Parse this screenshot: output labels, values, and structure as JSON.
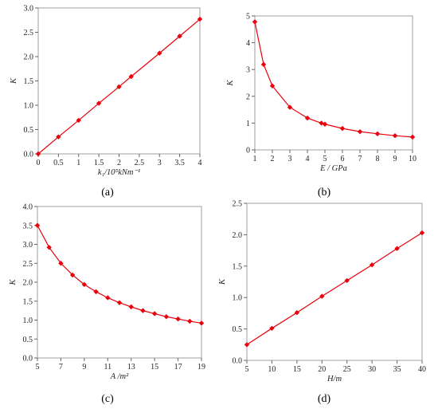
{
  "colors": {
    "series": "#e8000b",
    "axis": "#666666"
  },
  "chart_data": [
    {
      "type": "line",
      "panel_label": "(a)",
      "xlabel": "k₁/10⁵kNm⁻¹",
      "ylabel": "K",
      "xlim": [
        0,
        4
      ],
      "ylim": [
        0,
        3.0
      ],
      "xticks": [
        0,
        0.5,
        1,
        1.5,
        2,
        2.5,
        3,
        3.5,
        4
      ],
      "xtick_labels": [
        "0",
        "0.5",
        "1",
        "1.5",
        "2",
        "2.5",
        "3",
        "3.5",
        "4"
      ],
      "yticks": [
        0,
        0.5,
        1,
        1.5,
        2,
        2.5,
        3
      ],
      "ytick_labels": [
        "0.0",
        "0.5",
        "1.0",
        "1.5",
        "2.0",
        "2.5",
        "3.0"
      ],
      "series": [
        {
          "x": [
            0,
            0.5,
            1,
            1.5,
            2,
            2.3,
            3,
            3.5,
            4
          ],
          "y": [
            0,
            0.35,
            0.69,
            1.04,
            1.38,
            1.59,
            2.07,
            2.42,
            2.77
          ]
        }
      ]
    },
    {
      "type": "line",
      "panel_label": "(b)",
      "xlabel": "E / GPa",
      "ylabel": "K",
      "xlim": [
        1,
        10
      ],
      "ylim": [
        0,
        5
      ],
      "xticks": [
        1,
        2,
        3,
        4,
        5,
        6,
        7,
        8,
        9,
        10
      ],
      "xtick_labels": [
        "1",
        "2",
        "3",
        "4",
        "5",
        "6",
        "7",
        "8",
        "9",
        "10"
      ],
      "yticks": [
        0,
        1,
        2,
        3,
        4,
        5
      ],
      "ytick_labels": [
        "0",
        "1",
        "2",
        "3",
        "4",
        "5"
      ],
      "series": [
        {
          "x": [
            1,
            1.5,
            2,
            3,
            4,
            4.8,
            5,
            6,
            7,
            8,
            9,
            10
          ],
          "y": [
            4.78,
            3.19,
            2.39,
            1.59,
            1.19,
            1.0,
            0.96,
            0.8,
            0.68,
            0.6,
            0.53,
            0.48
          ]
        }
      ]
    },
    {
      "type": "line",
      "panel_label": "(c)",
      "xlabel": "A /m²",
      "ylabel": "K",
      "xlim": [
        5,
        19
      ],
      "ylim": [
        0,
        4.0
      ],
      "xticks": [
        5,
        7,
        9,
        11,
        13,
        15,
        17,
        19
      ],
      "xtick_labels": [
        "5",
        "7",
        "9",
        "11",
        "13",
        "15",
        "17",
        "19"
      ],
      "yticks": [
        0,
        0.5,
        1,
        1.5,
        2,
        2.5,
        3,
        3.5,
        4
      ],
      "ytick_labels": [
        "0.0",
        "0.5",
        "1.0",
        "1.5",
        "2.0",
        "2.5",
        "3.0",
        "3.5",
        "4.0"
      ],
      "series": [
        {
          "x": [
            5,
            6,
            7,
            8,
            9,
            10,
            11,
            12,
            13,
            14,
            15,
            16,
            17,
            18,
            19
          ],
          "y": [
            3.5,
            2.92,
            2.5,
            2.19,
            1.94,
            1.75,
            1.59,
            1.46,
            1.35,
            1.25,
            1.17,
            1.09,
            1.03,
            0.97,
            0.92
          ]
        }
      ]
    },
    {
      "type": "line",
      "panel_label": "(d)",
      "xlabel": "H/m",
      "ylabel": "K",
      "xlim": [
        5,
        40
      ],
      "ylim": [
        0,
        2.5
      ],
      "xticks": [
        5,
        10,
        15,
        20,
        25,
        30,
        35,
        40
      ],
      "xtick_labels": [
        "5",
        "10",
        "15",
        "20",
        "25",
        "30",
        "35",
        "40"
      ],
      "yticks": [
        0,
        0.5,
        1,
        1.5,
        2,
        2.5
      ],
      "ytick_labels": [
        "0.0",
        "0.5",
        "1.0",
        "1.5",
        "2.0",
        "2.5"
      ],
      "series": [
        {
          "x": [
            5,
            10,
            15,
            20,
            25,
            30,
            35,
            40
          ],
          "y": [
            0.25,
            0.51,
            0.76,
            1.02,
            1.27,
            1.52,
            1.78,
            2.03
          ]
        }
      ]
    }
  ]
}
